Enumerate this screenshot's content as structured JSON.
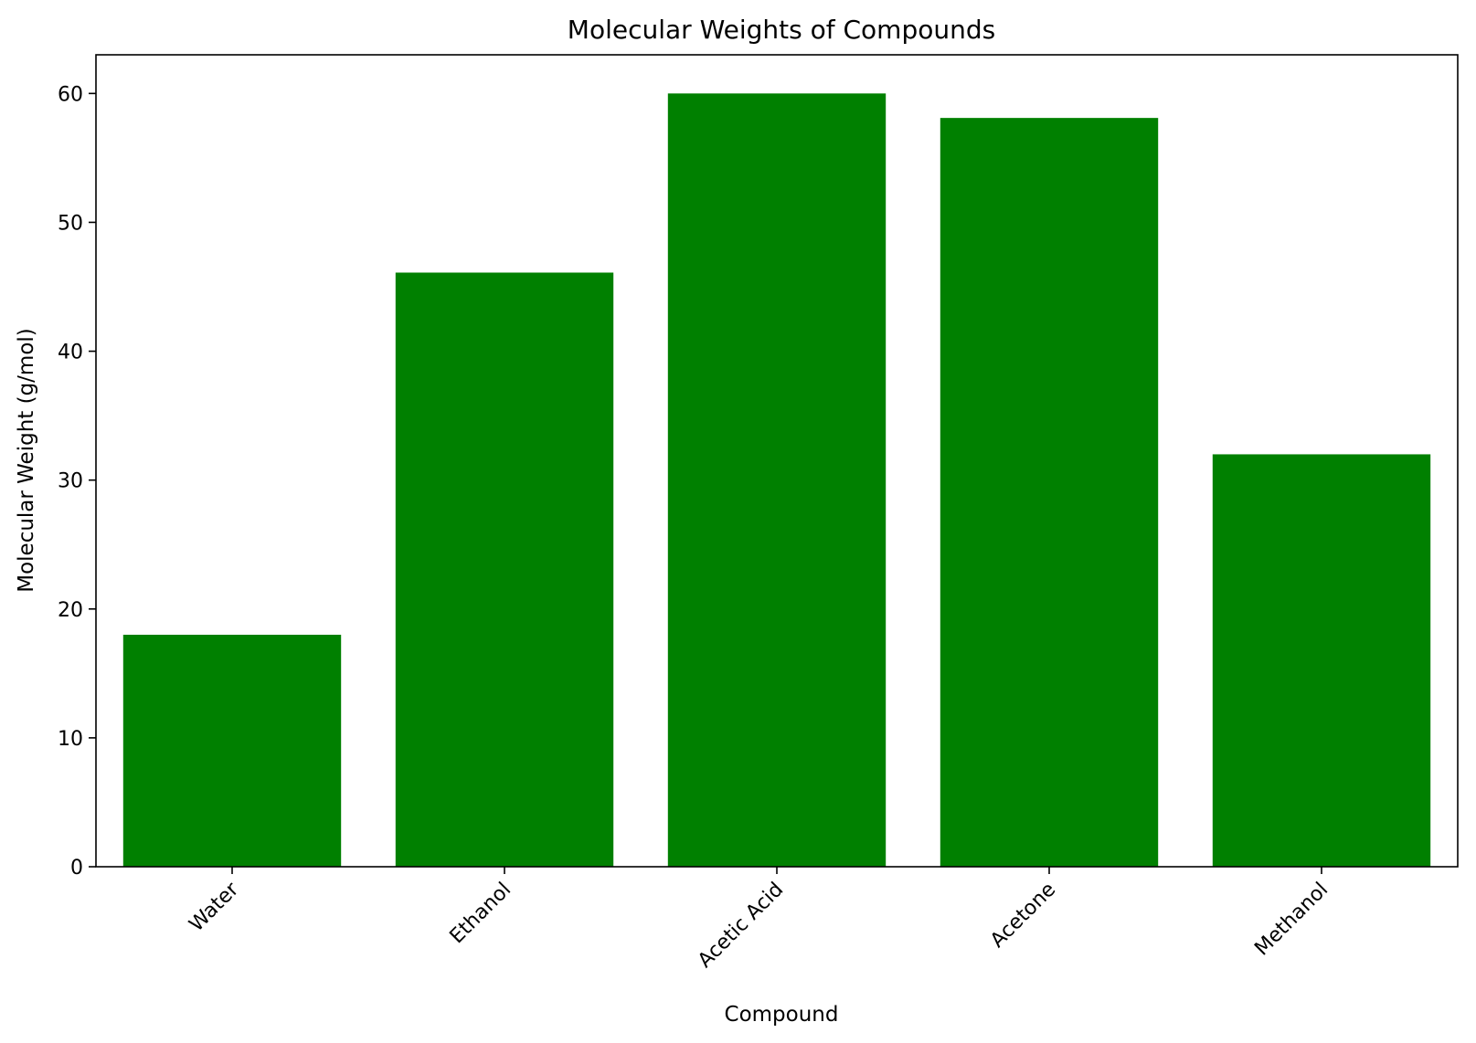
{
  "chart_data": {
    "type": "bar",
    "title": "Molecular Weights of Compounds",
    "xlabel": "Compound",
    "ylabel": "Molecular Weight (g/mol)",
    "categories": [
      "Water",
      "Ethanol",
      "Acetic Acid",
      "Acetone",
      "Methanol"
    ],
    "values": [
      18.0,
      46.1,
      60.0,
      58.1,
      32.0
    ],
    "ylim": [
      0,
      63
    ],
    "yticks": [
      0,
      10,
      20,
      30,
      40,
      50,
      60
    ],
    "x_tick_rotation": 45,
    "bar_color": "#008000",
    "grid": false,
    "legend": "none"
  }
}
